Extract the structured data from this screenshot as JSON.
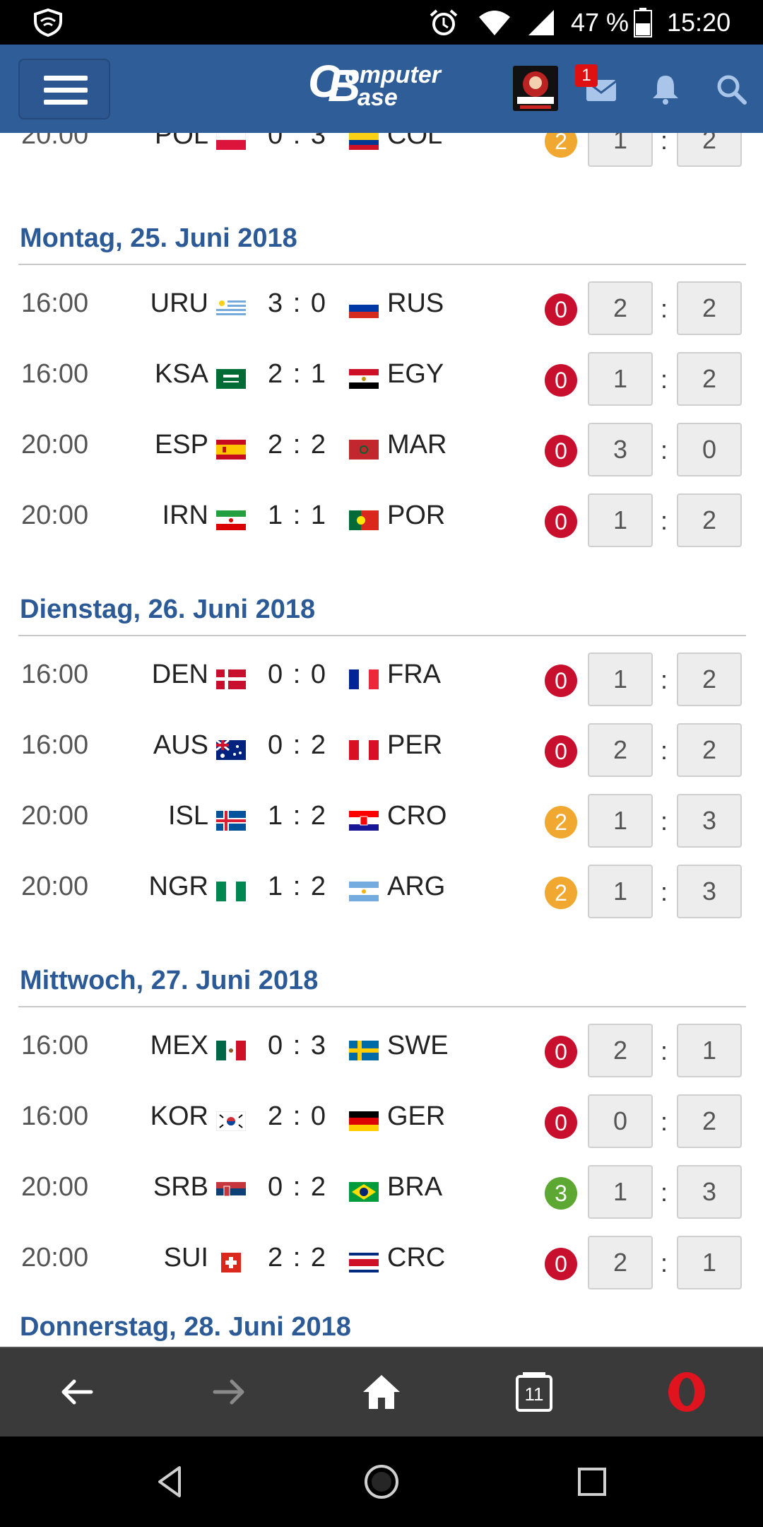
{
  "status_bar": {
    "battery": "47 %",
    "time": "15:20"
  },
  "header": {
    "notification_count": "1"
  },
  "days": [
    {
      "title": "Montag, 25. Juni 2018",
      "matches": [
        {
          "time": "16:00",
          "home": "URU",
          "score": "3 : 0",
          "away": "RUS",
          "points": "0",
          "points_color": "#c8102e",
          "tip_home": "2",
          "tip_away": "2",
          "flag1": "uru",
          "flag2": "rus"
        },
        {
          "time": "16:00",
          "home": "KSA",
          "score": "2 : 1",
          "away": "EGY",
          "points": "0",
          "points_color": "#c8102e",
          "tip_home": "1",
          "tip_away": "2",
          "flag1": "ksa",
          "flag2": "egy"
        },
        {
          "time": "20:00",
          "home": "ESP",
          "score": "2 : 2",
          "away": "MAR",
          "points": "0",
          "points_color": "#c8102e",
          "tip_home": "3",
          "tip_away": "0",
          "flag1": "esp",
          "flag2": "mar"
        },
        {
          "time": "20:00",
          "home": "IRN",
          "score": "1 : 1",
          "away": "POR",
          "points": "0",
          "points_color": "#c8102e",
          "tip_home": "1",
          "tip_away": "2",
          "flag1": "irn",
          "flag2": "por"
        }
      ]
    },
    {
      "title": "Dienstag, 26. Juni 2018",
      "matches": [
        {
          "time": "16:00",
          "home": "DEN",
          "score": "0 : 0",
          "away": "FRA",
          "points": "0",
          "points_color": "#c8102e",
          "tip_home": "1",
          "tip_away": "2",
          "flag1": "den",
          "flag2": "fra"
        },
        {
          "time": "16:00",
          "home": "AUS",
          "score": "0 : 2",
          "away": "PER",
          "points": "0",
          "points_color": "#c8102e",
          "tip_home": "2",
          "tip_away": "2",
          "flag1": "aus",
          "flag2": "per"
        },
        {
          "time": "20:00",
          "home": "ISL",
          "score": "1 : 2",
          "away": "CRO",
          "points": "2",
          "points_color": "#f0a830",
          "tip_home": "1",
          "tip_away": "3",
          "flag1": "isl",
          "flag2": "cro"
        },
        {
          "time": "20:00",
          "home": "NGR",
          "score": "1 : 2",
          "away": "ARG",
          "points": "2",
          "points_color": "#f0a830",
          "tip_home": "1",
          "tip_away": "3",
          "flag1": "ngr",
          "flag2": "arg"
        }
      ]
    },
    {
      "title": "Mittwoch, 27. Juni 2018",
      "matches": [
        {
          "time": "16:00",
          "home": "MEX",
          "score": "0 : 3",
          "away": "SWE",
          "points": "0",
          "points_color": "#c8102e",
          "tip_home": "2",
          "tip_away": "1",
          "flag1": "mex",
          "flag2": "swe"
        },
        {
          "time": "16:00",
          "home": "KOR",
          "score": "2 : 0",
          "away": "GER",
          "points": "0",
          "points_color": "#c8102e",
          "tip_home": "0",
          "tip_away": "2",
          "flag1": "kor",
          "flag2": "ger"
        },
        {
          "time": "20:00",
          "home": "SRB",
          "score": "0 : 2",
          "away": "BRA",
          "points": "3",
          "points_color": "#5ca832",
          "tip_home": "1",
          "tip_away": "3",
          "flag1": "srb",
          "flag2": "bra"
        },
        {
          "time": "20:00",
          "home": "SUI",
          "score": "2 : 2",
          "away": "CRC",
          "points": "0",
          "points_color": "#c8102e",
          "tip_home": "2",
          "tip_away": "1",
          "flag1": "sui",
          "flag2": "crc"
        }
      ]
    }
  ],
  "top_partial_match": {
    "time": "20:00",
    "home": "POL",
    "score": "0 : 3",
    "away": "COL",
    "points": "2",
    "points_color": "#f0a830",
    "tip_home": "1",
    "tip_away": "2",
    "flag1": "pol",
    "flag2": "col"
  },
  "next_day_partial": "Donnerstag, 28. Juni 2018",
  "browser_bar": {
    "tab_count": "11"
  },
  "colors": {
    "header_bg": "#2f5d97",
    "day_title": "#2b5a96",
    "browser_bar_bg": "#3a3a3a"
  }
}
